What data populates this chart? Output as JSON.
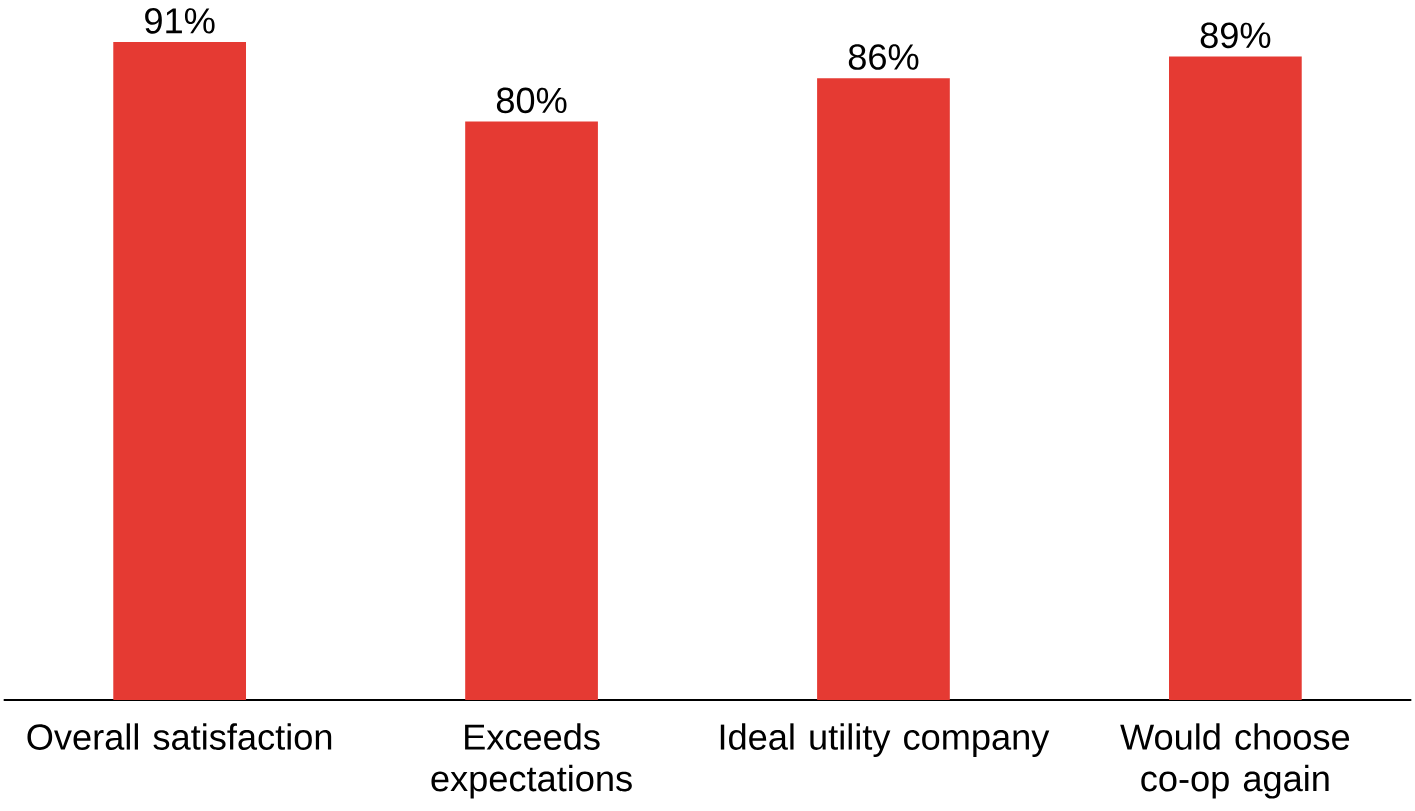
{
  "chart_data": {
    "type": "bar",
    "categories": [
      "Overall satisfaction",
      "Exceeds expectations",
      "Ideal utility company",
      "Would choose co-op again"
    ],
    "values": [
      91,
      80,
      86,
      89
    ],
    "value_labels": [
      "91%",
      "80%",
      "86%",
      "89%"
    ],
    "color": "#e53a33"
  }
}
